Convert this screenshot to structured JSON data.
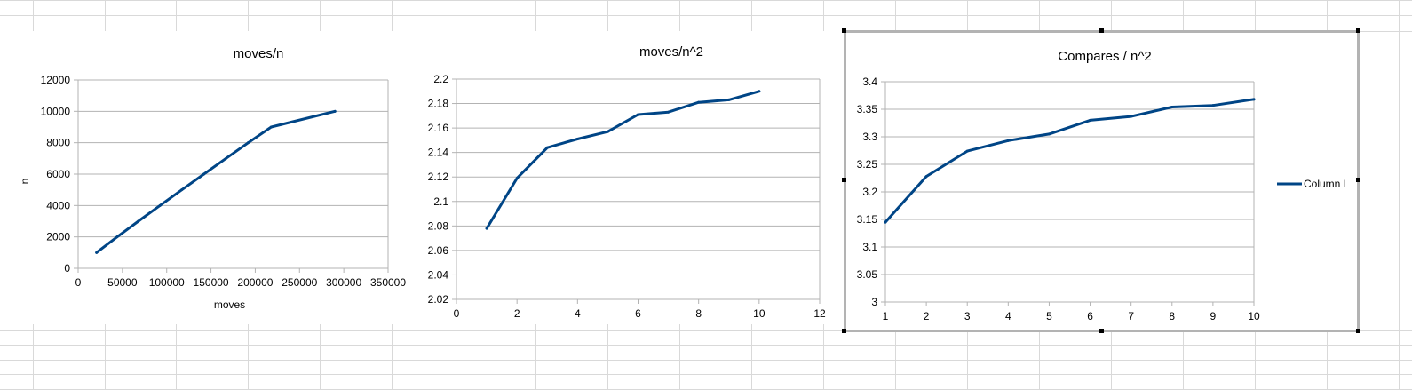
{
  "chart_data": [
    {
      "type": "line",
      "title": "moves/n",
      "xlabel": "moves",
      "ylabel": "n",
      "xlim": [
        0,
        350000
      ],
      "ylim": [
        0,
        12000
      ],
      "xticks": [
        "0",
        "50000",
        "100000",
        "150000",
        "200000",
        "250000",
        "300000",
        "350000"
      ],
      "yticks": [
        "0",
        "2000",
        "4000",
        "6000",
        "8000",
        "10000",
        "12000"
      ],
      "grid": true,
      "legend": "none",
      "color": "#004586",
      "series": [
        {
          "x": [
            20800,
            44000,
            68000,
            92500,
            117000,
            142000,
            167000,
            192000,
            218000,
            244000,
            290000
          ],
          "y": [
            1000,
            2000,
            3000,
            4000,
            5000,
            6000,
            7000,
            8000,
            9000,
            10000,
            10000
          ]
        }
      ]
    },
    {
      "type": "line",
      "title": "moves/n^2",
      "xlabel": "",
      "ylabel": "",
      "xlim": [
        0,
        12
      ],
      "ylim": [
        2.02,
        2.2
      ],
      "xticks": [
        "0",
        "2",
        "4",
        "6",
        "8",
        "10",
        "12"
      ],
      "yticks": [
        "2.02",
        "2.04",
        "2.06",
        "2.08",
        "2.1",
        "2.12",
        "2.14",
        "2.16",
        "2.18",
        "2.2"
      ],
      "grid": true,
      "legend": "none",
      "color": "#004586",
      "series": [
        {
          "x": [
            1,
            2,
            3,
            4,
            5,
            6,
            7,
            8,
            9,
            10
          ],
          "y": [
            2.078,
            2.119,
            2.144,
            2.151,
            2.157,
            2.171,
            2.173,
            2.181,
            2.183,
            2.19
          ]
        }
      ]
    },
    {
      "type": "line",
      "title": "Compares / n^2",
      "xlabel": "",
      "ylabel": "",
      "xlim": [
        1,
        10
      ],
      "ylim": [
        3,
        3.4
      ],
      "xticks": [
        "1",
        "2",
        "3",
        "4",
        "5",
        "6",
        "7",
        "8",
        "9",
        "10"
      ],
      "yticks": [
        "3",
        "3.05",
        "3.1",
        "3.15",
        "3.2",
        "3.25",
        "3.3",
        "3.35",
        "3.4"
      ],
      "grid": true,
      "legend": "right",
      "color": "#004586",
      "series": [
        {
          "name": "Column I",
          "x": [
            1,
            2,
            3,
            4,
            5,
            6,
            7,
            8,
            9,
            10
          ],
          "y": [
            3.145,
            3.228,
            3.274,
            3.293,
            3.305,
            3.33,
            3.337,
            3.354,
            3.357,
            3.368
          ]
        }
      ]
    }
  ]
}
